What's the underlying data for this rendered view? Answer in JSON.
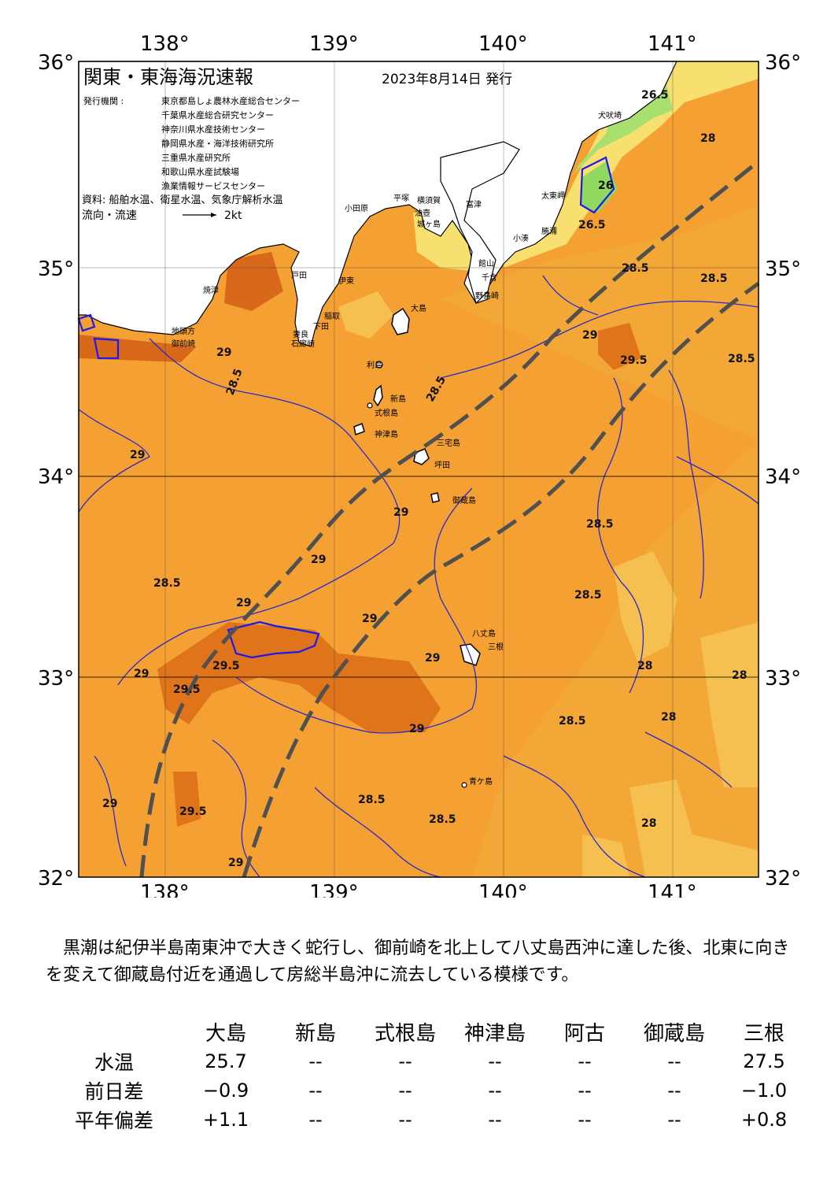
{
  "header": {
    "title": "関東・東海海況速報",
    "date": "2023年8月14日 発行",
    "issuer_label": "発行機関 :",
    "issuers": [
      "東京都島しょ農林水産総合センター",
      "千葉県水産総合研究センター",
      "神奈川県水産技術センター",
      "静岡県水産・海洋技術研究所",
      "三重県水産研究所",
      "和歌山県水産試験場",
      "漁業情報サービスセンター"
    ],
    "sources": "資料: 船舶水温、衛星水温、気象庁解析水温",
    "flow_label": "流向・流速",
    "flow_scale": "2kt"
  },
  "axes": {
    "lon_top": [
      "138°",
      "139°",
      "140°",
      "141°"
    ],
    "lon_bottom": [
      "138°",
      "139°",
      "140°",
      "141°"
    ],
    "lat_left": [
      "36°",
      "35°",
      "34°",
      "33°",
      "32°"
    ],
    "lat_right": [
      "36°",
      "35°",
      "34°",
      "33°",
      "32°"
    ]
  },
  "place_names": {
    "oshima": "大島",
    "toshima": "利島",
    "niijima": "新島",
    "shikinejima": "式根島",
    "kozushima": "神津島",
    "miyake": "三宅島",
    "ako": "坪田",
    "mikura": "御蔵島",
    "hachijo": "八丈島",
    "mikurasea": "三根",
    "aogashima": "青ケ島",
    "odawara": "小田原",
    "hiratsuka": "平塚",
    "yokosuka": "横須賀",
    "misaki": "油壺",
    "jogashima": "城ヶ島",
    "futtsu": "富津",
    "tateyama": "館山",
    "chikura": "千倉",
    "nojimazaki": "野島崎",
    "katsuura": "勝浦",
    "kominato": "小湊",
    "taitozaki": "太東岬",
    "inubozaki": "犬吠埼",
    "ito": "伊東",
    "inatori": "稲取",
    "shimoda": "下田",
    "mera": "妻良",
    "irozaki": "石廊崎",
    "heda": "戸田",
    "omaezaki": "御前崎",
    "yaizu": "焼津",
    "jizogashima": "地頭方"
  },
  "contour_labels": [
    "29",
    "28.5",
    "29.5",
    "28",
    "26.5",
    "26",
    "26.5"
  ],
  "description": "黒潮は紀伊半島南東沖で大きく蛇行し、御前崎を北上して八丈島西沖に達した後、北東に向きを変えて御蔵島付近を通過して房総半島沖に流去している模様です。",
  "table": {
    "columns": [
      "大島",
      "新島",
      "式根島",
      "神津島",
      "阿古",
      "御蔵島",
      "三根"
    ],
    "rows": [
      {
        "label": "水温",
        "values": [
          "25.7",
          "--",
          "--",
          "--",
          "--",
          "--",
          "27.5"
        ]
      },
      {
        "label": "前日差",
        "values": [
          "−0.9",
          "--",
          "--",
          "--",
          "--",
          "--",
          "−1.0"
        ]
      },
      {
        "label": "平年偏差",
        "values": [
          "+1.1",
          "--",
          "--",
          "--",
          "--",
          "--",
          "+0.8"
        ]
      }
    ]
  },
  "colors": {
    "sea_base": "#f5a033",
    "sea_warm": "#e8801f",
    "sea_hot": "#d86a12",
    "sea_cool": "#f5c050",
    "sea_cold_yellow": "#f7e070",
    "sea_green": "#a8e070",
    "contour": "#2a2acc",
    "kuroshio_axis": "#505050",
    "land": "#ffffff"
  }
}
